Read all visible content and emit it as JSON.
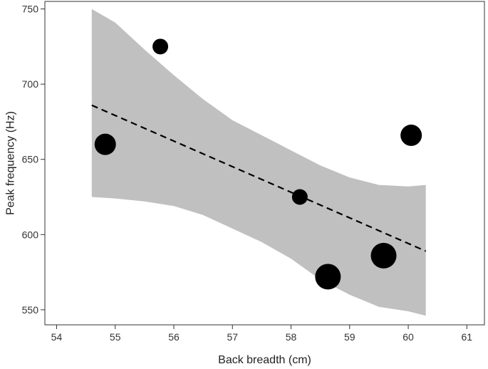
{
  "chart_data": {
    "type": "scatter",
    "xlabel": "Back breadth (cm)",
    "ylabel": "Peak frequency (Hz)",
    "xlim": [
      53.8,
      61.3
    ],
    "ylim": [
      540,
      755
    ],
    "x_ticks": [
      54,
      55,
      56,
      57,
      58,
      59,
      60,
      61
    ],
    "y_ticks": [
      550,
      600,
      650,
      700,
      750
    ],
    "grid": false,
    "legend": "none",
    "points": [
      {
        "x": 54.83,
        "y": 660,
        "size": 2
      },
      {
        "x": 55.77,
        "y": 725,
        "size": 1
      },
      {
        "x": 58.15,
        "y": 625,
        "size": 1
      },
      {
        "x": 58.63,
        "y": 572,
        "size": 3
      },
      {
        "x": 59.58,
        "y": 586,
        "size": 3
      },
      {
        "x": 60.05,
        "y": 666,
        "size": 2
      }
    ],
    "fit_line": {
      "style": "dashed",
      "x": [
        54.6,
        60.3
      ],
      "y": [
        686,
        589
      ]
    },
    "confidence_band": {
      "x": [
        54.6,
        55.0,
        55.5,
        56.0,
        56.5,
        57.0,
        57.5,
        58.0,
        58.5,
        59.0,
        59.5,
        60.0,
        60.3
      ],
      "upper": [
        750,
        741,
        723,
        706,
        690,
        676,
        666,
        656,
        646,
        638,
        633,
        632,
        633
      ],
      "lower": [
        625,
        624,
        622,
        619,
        613,
        604,
        595,
        584,
        570,
        560,
        552,
        549,
        546
      ]
    },
    "colors": {
      "points": "#000000",
      "band": "#c0c0c0",
      "line": "#000000",
      "axes": "#333333"
    }
  }
}
